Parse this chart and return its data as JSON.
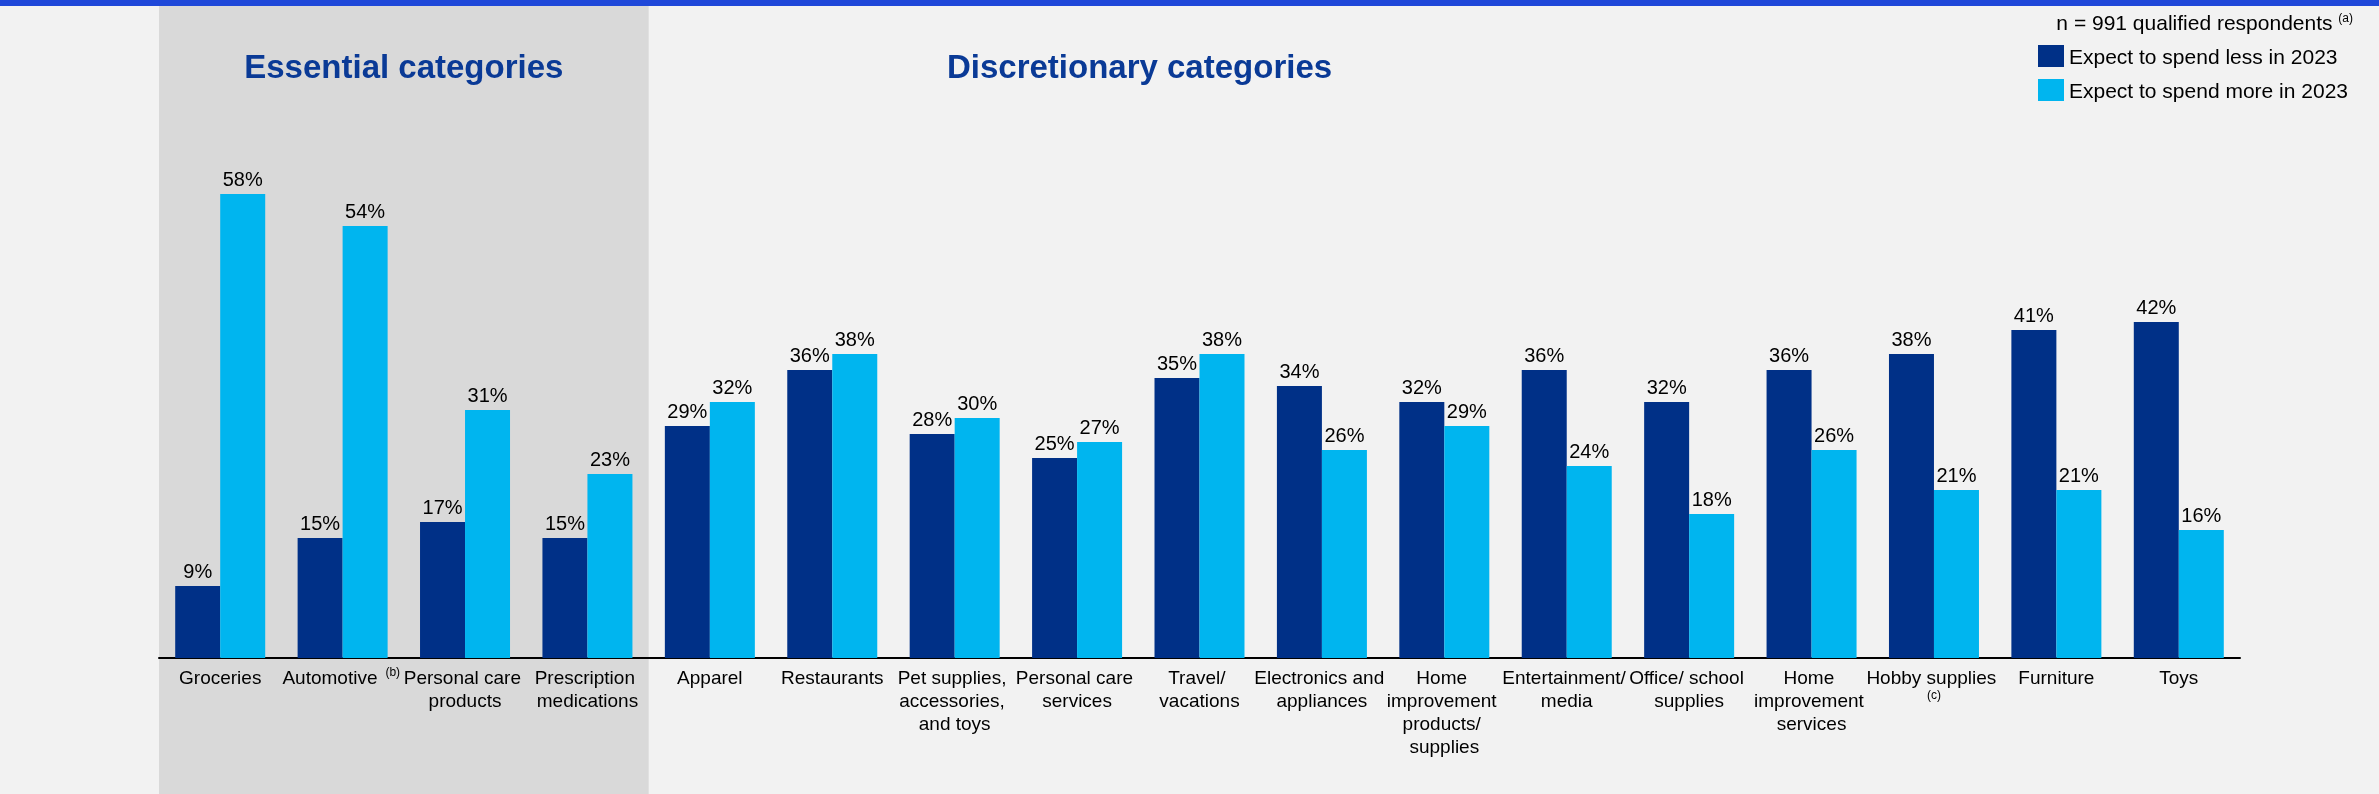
{
  "chart_data": {
    "type": "bar",
    "legend_title": "n = 991 qualified respondents$^{(a)}$",
    "annotations": [
      "Discretionary categories"
    ],
    "categories": [
      "Groceries",
      "Automotive$^{(b)}$",
      "Personal care products",
      "Prescription medications",
      "Apparel",
      "Restaurants",
      "Pet supplies, accessories, and toys",
      "Personal care services",
      "Travel/ vacations",
      "Electronics and appliances",
      "Home improvement products/ supplies",
      "Entertainment/ media",
      "Office/ school supplies",
      "Home improvement services",
      "Hobby supplies$^{(c)}$",
      "Furniture",
      "Toys"
    ],
    "series": [
      {
        "name": "Expect to spend less in 2023",
        "color": "#003087",
        "values": [
          9,
          15,
          17,
          15,
          29,
          36,
          28,
          25,
          35,
          34,
          32,
          36,
          32,
          36,
          38,
          41,
          42
        ],
        "value_labels": [
          "9%",
          "15%",
          "17%",
          "15%",
          "29%",
          "36%",
          "28%",
          "25%",
          "35%",
          "34%",
          "32%",
          "36%",
          "32%",
          "36%",
          "38%",
          "41%",
          "42%"
        ]
      },
      {
        "name": "Expect to spend more in 2023",
        "color": "#00b5ef",
        "values": [
          58,
          54,
          31,
          23,
          32,
          38,
          30,
          27,
          38,
          26,
          29,
          24,
          18,
          26,
          21,
          21,
          16
        ],
        "value_labels": [
          "58%",
          "54%",
          "31%",
          "23%",
          "32%",
          "38%",
          "30%",
          "27%",
          "38%",
          "26%",
          "29%",
          "24%",
          "18%",
          "26%",
          "21%",
          "21%",
          "16%"
        ]
      }
    ],
    "bands": [
      {
        "axis": "x",
        "from": "Groceries",
        "to": "Prescription medications",
        "label": "Essential categories",
        "color": "#d9d9d9"
      }
    ],
    "legend": "top right",
    "grid": false
  }
}
